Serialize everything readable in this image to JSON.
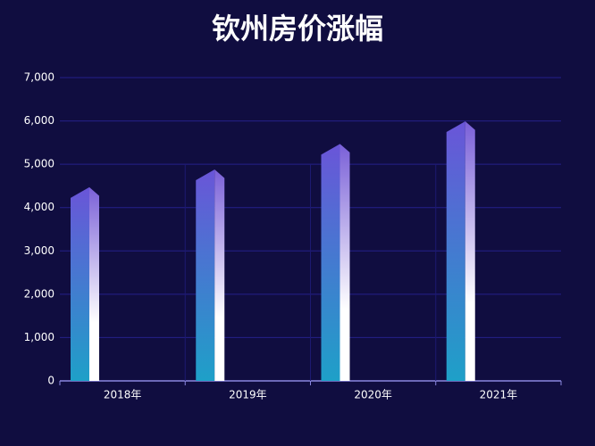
{
  "chart_data": {
    "type": "bar",
    "title": "钦州房价涨幅",
    "categories": [
      "2018年",
      "2019年",
      "2020年",
      "2021年"
    ],
    "values": [
      4470,
      4880,
      5470,
      5990
    ],
    "ylim": [
      0,
      7000
    ],
    "yticks": [
      0,
      {
        "value": 1000,
        "label": "1,000"
      },
      {
        "value": 2000,
        "label": "2,000"
      },
      {
        "value": 3000,
        "label": "3,000"
      },
      {
        "value": 4000,
        "label": "4,000"
      },
      {
        "value": 5000,
        "label": "5,000"
      },
      {
        "value": 6000,
        "label": "6,000"
      },
      {
        "value": 7000,
        "label": "7,000"
      }
    ],
    "grid": true
  }
}
